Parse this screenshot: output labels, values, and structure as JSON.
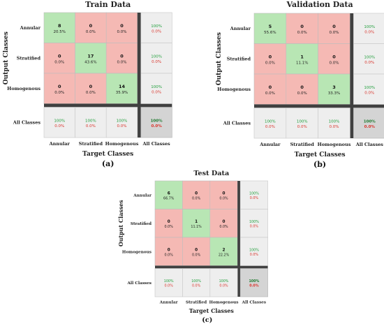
{
  "chart_data": [
    {
      "type": "heatmap",
      "title": "Train Data",
      "xlabel": "Target Classes",
      "ylabel": "Output Classes",
      "panel_label": "(a)",
      "classes": [
        "Annular",
        "Stratified",
        "Homogenous"
      ],
      "summary_label": "All Classes",
      "counts": [
        [
          8,
          0,
          0
        ],
        [
          0,
          17,
          0
        ],
        [
          0,
          0,
          14
        ]
      ],
      "cell_percents": [
        [
          "20.5%",
          "0.0%",
          "0.0%"
        ],
        [
          "0.0%",
          "43.6%",
          "0.0%"
        ],
        [
          "0.0%",
          "0.0%",
          "35.9%"
        ]
      ],
      "row_summary": [
        [
          "100%",
          "0.0%"
        ],
        [
          "100%",
          "0.0%"
        ],
        [
          "100%",
          "0.0%"
        ]
      ],
      "col_summary": [
        [
          "100%",
          "0.0%"
        ],
        [
          "100%",
          "0.0%"
        ],
        [
          "100%",
          "0.0%"
        ]
      ],
      "overall": [
        "100%",
        "0.0%"
      ]
    },
    {
      "type": "heatmap",
      "title": "Validation Data",
      "xlabel": "Target Classes",
      "ylabel": "Output Classes",
      "panel_label": "(b)",
      "classes": [
        "Annular",
        "Stratified",
        "Homogenous"
      ],
      "summary_label": "All Classes",
      "counts": [
        [
          5,
          0,
          0
        ],
        [
          0,
          1,
          0
        ],
        [
          0,
          0,
          3
        ]
      ],
      "cell_percents": [
        [
          "55.6%",
          "0.0%",
          "0.0%"
        ],
        [
          "0.0%",
          "11.1%",
          "0.0%"
        ],
        [
          "0.0%",
          "0.0%",
          "33.3%"
        ]
      ],
      "row_summary": [
        [
          "100%",
          "0.0%"
        ],
        [
          "100%",
          "0.0%"
        ],
        [
          "100%",
          "0.0%"
        ]
      ],
      "col_summary": [
        [
          "100%",
          "0.0%"
        ],
        [
          "100%",
          "0.0%"
        ],
        [
          "100%",
          "0.0%"
        ]
      ],
      "overall": [
        "100%",
        "0.0%"
      ]
    },
    {
      "type": "heatmap",
      "title": "Test Data",
      "xlabel": "Target Classes",
      "ylabel": "Output Classes",
      "panel_label": "(c)",
      "classes": [
        "Annular",
        "Stratified",
        "Homogenous"
      ],
      "summary_label": "All Classes",
      "counts": [
        [
          6,
          0,
          0
        ],
        [
          0,
          1,
          0
        ],
        [
          0,
          0,
          2
        ]
      ],
      "cell_percents": [
        [
          "66.7%",
          "0.0%",
          "0.0%"
        ],
        [
          "0.0%",
          "11.1%",
          "0.0%"
        ],
        [
          "0.0%",
          "0.0%",
          "22.2%"
        ]
      ],
      "row_summary": [
        [
          "100%",
          "0.0%"
        ],
        [
          "100%",
          "0.0%"
        ],
        [
          "100%",
          "0.0%"
        ]
      ],
      "col_summary": [
        [
          "100%",
          "0.0%"
        ],
        [
          "100%",
          "0.0%"
        ],
        [
          "100%",
          "0.0%"
        ]
      ],
      "overall": [
        "100%",
        "0.0%"
      ]
    }
  ],
  "colors": {
    "correct": "#b8e6b4",
    "wrong": "#f5b9b4",
    "summary": "#eeeeee",
    "overall": "#d4d4d4",
    "separator": "#404040",
    "good_text": "#1f9e3a",
    "bad_text": "#d9342b"
  }
}
